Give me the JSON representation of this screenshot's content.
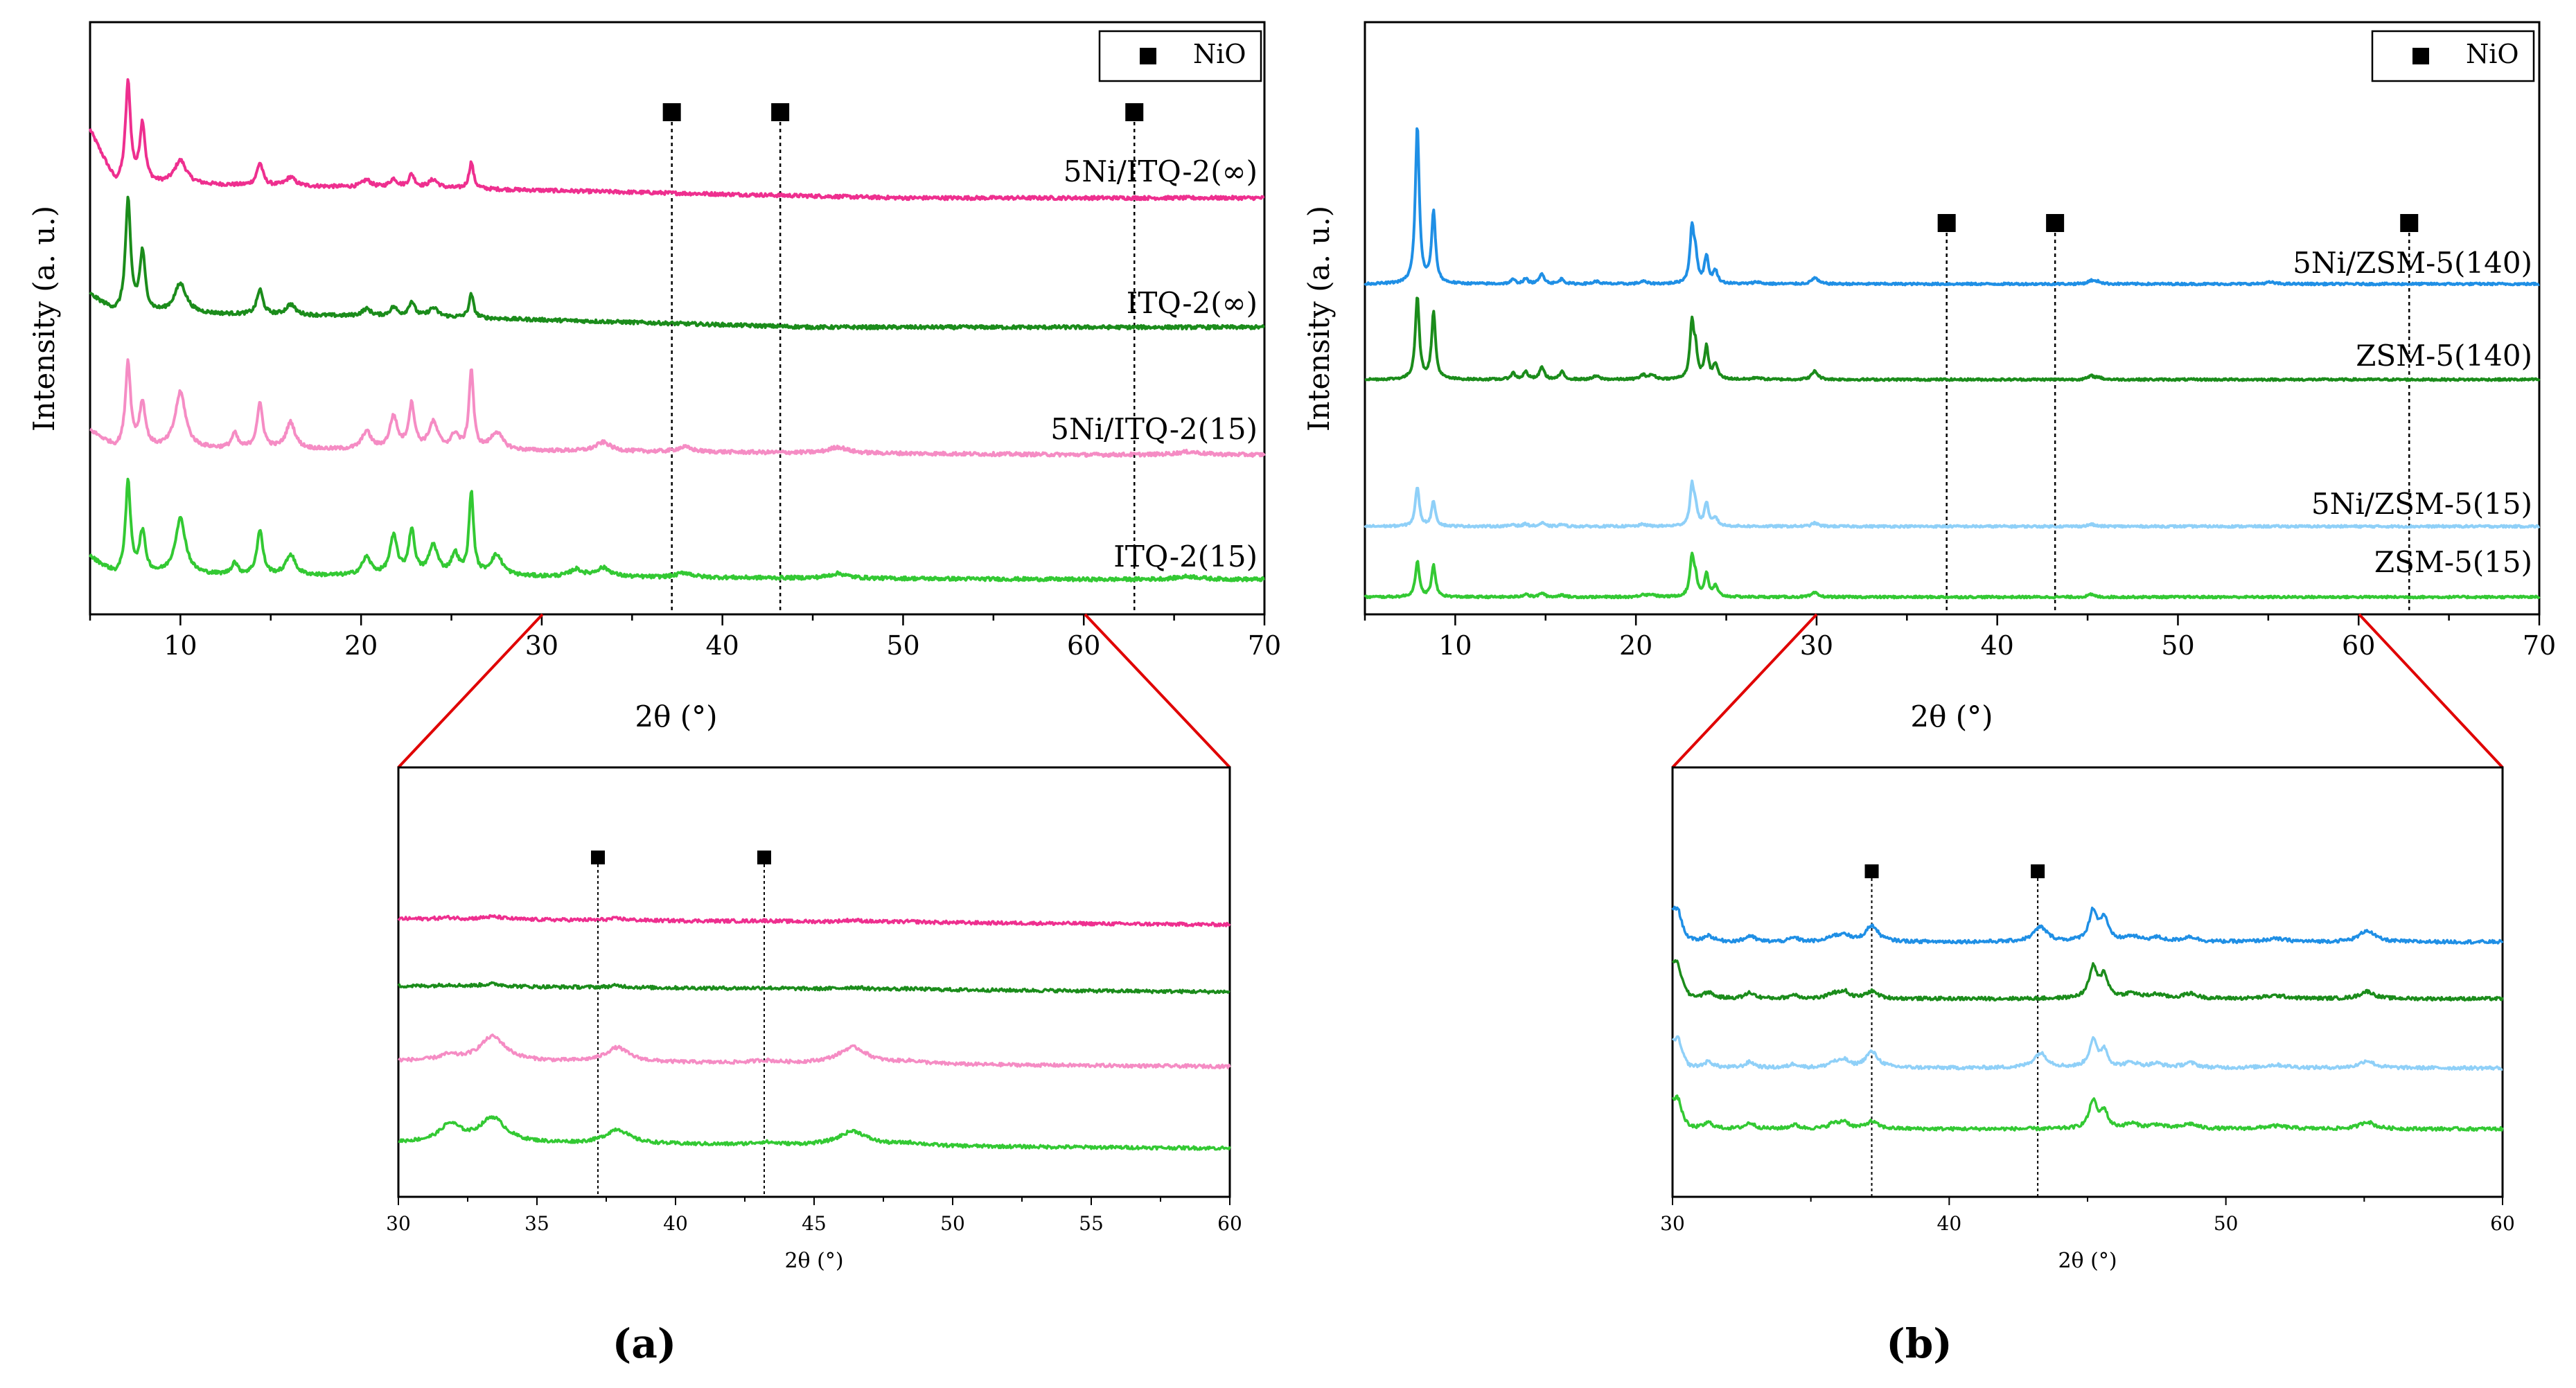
{
  "figure": {
    "panels": [
      {
        "id": "a",
        "label": "(a)"
      },
      {
        "id": "b",
        "label": "(b)"
      }
    ]
  },
  "colors": {
    "pink_dark": "#ee2f8f",
    "green_dark": "#1b8c1b",
    "pink_light": "#f58cc4",
    "green_light": "#33c933",
    "blue_dark": "#1f8fe5",
    "blue_light": "#8fd0f8",
    "zoom_line": "#e00000",
    "axis": "#000000"
  },
  "chart_data": [
    {
      "panel": "a",
      "type": "line",
      "xlabel": "2θ (°)",
      "ylabel": "Intensity (a. u.)",
      "xlim": [
        5,
        70
      ],
      "xticks": [
        10,
        20,
        30,
        40,
        50,
        60,
        70
      ],
      "legend": {
        "symbol": "square",
        "label": "NiO",
        "position": "top-right"
      },
      "markers": {
        "symbol": "square",
        "x": [
          37.2,
          43.2,
          62.8
        ]
      },
      "series": [
        {
          "name": "5Ni/ITQ-2(∞)",
          "color_key": "pink_dark",
          "offset": 3,
          "scale": 1.0,
          "peaks": [
            [
              7.1,
              1.7,
              0.17
            ],
            [
              7.9,
              1.0,
              0.18
            ],
            [
              10.0,
              0.4,
              0.4
            ],
            [
              14.4,
              0.38,
              0.2
            ],
            [
              16.1,
              0.15,
              0.3
            ],
            [
              20.3,
              0.12,
              0.3
            ],
            [
              21.8,
              0.14,
              0.25
            ],
            [
              22.8,
              0.22,
              0.2
            ],
            [
              24.0,
              0.14,
              0.3
            ],
            [
              26.1,
              0.45,
              0.15
            ]
          ],
          "trail": [
            25,
            0.3,
            50,
            0.05
          ]
        },
        {
          "name": "ITQ-2(∞)",
          "color_key": "green_dark",
          "offset": 2,
          "scale": 1.0,
          "peaks": [
            [
              7.1,
              1.9,
              0.17
            ],
            [
              7.9,
              1.0,
              0.18
            ],
            [
              10.0,
              0.5,
              0.4
            ],
            [
              14.4,
              0.42,
              0.2
            ],
            [
              16.1,
              0.18,
              0.3
            ],
            [
              20.3,
              0.12,
              0.3
            ],
            [
              21.8,
              0.15,
              0.25
            ],
            [
              22.8,
              0.25,
              0.2
            ],
            [
              24.0,
              0.15,
              0.3
            ],
            [
              26.1,
              0.4,
              0.15
            ]
          ],
          "trail": [
            25,
            0.28,
            45,
            0.03
          ]
        },
        {
          "name": "5Ni/ITQ-2(15)",
          "color_key": "pink_light",
          "offset": 1,
          "scale": 1.0,
          "peaks": [
            [
              7.1,
              1.45,
              0.17
            ],
            [
              7.9,
              0.75,
              0.2
            ],
            [
              10.0,
              0.95,
              0.35
            ],
            [
              13.0,
              0.25,
              0.2
            ],
            [
              14.4,
              0.75,
              0.2
            ],
            [
              16.1,
              0.45,
              0.3
            ],
            [
              20.3,
              0.3,
              0.3
            ],
            [
              21.8,
              0.55,
              0.25
            ],
            [
              22.8,
              0.75,
              0.2
            ],
            [
              24.0,
              0.45,
              0.3
            ],
            [
              25.2,
              0.25,
              0.25
            ],
            [
              26.1,
              1.35,
              0.15
            ],
            [
              27.5,
              0.3,
              0.4
            ],
            [
              33.4,
              0.15,
              0.5
            ],
            [
              37.9,
              0.08,
              0.5
            ],
            [
              46.4,
              0.1,
              0.6
            ],
            [
              65.8,
              0.05,
              0.8
            ]
          ],
          "trail": [
            30,
            0.15,
            60,
            0.04
          ]
        },
        {
          "name": "ITQ-2(15)",
          "color_key": "green_light",
          "offset": 0,
          "scale": 1.0,
          "peaks": [
            [
              7.1,
              1.55,
              0.17
            ],
            [
              7.9,
              0.7,
              0.2
            ],
            [
              10.0,
              0.95,
              0.35
            ],
            [
              13.0,
              0.2,
              0.2
            ],
            [
              14.4,
              0.75,
              0.2
            ],
            [
              16.1,
              0.35,
              0.3
            ],
            [
              20.3,
              0.3,
              0.3
            ],
            [
              21.8,
              0.65,
              0.25
            ],
            [
              22.8,
              0.75,
              0.2
            ],
            [
              24.0,
              0.5,
              0.3
            ],
            [
              25.2,
              0.35,
              0.25
            ],
            [
              26.1,
              1.4,
              0.15
            ],
            [
              27.5,
              0.35,
              0.4
            ],
            [
              31.9,
              0.12,
              0.4
            ],
            [
              33.4,
              0.15,
              0.5
            ],
            [
              37.9,
              0.08,
              0.5
            ],
            [
              46.4,
              0.08,
              0.6
            ],
            [
              65.8,
              0.05,
              0.8
            ]
          ],
          "trail": [
            30,
            0.12,
            60,
            0.04
          ]
        }
      ],
      "inset": {
        "xlabel": "2θ (°)",
        "xlim": [
          30,
          60
        ],
        "xticks": [
          30,
          35,
          40,
          45,
          50,
          55,
          60
        ],
        "markers": {
          "symbol": "square",
          "x": [
            37.2,
            43.2
          ]
        }
      }
    },
    {
      "panel": "b",
      "type": "line",
      "xlabel": "2θ (°)",
      "ylabel": "Intensity (a. u.)",
      "xlim": [
        5,
        70
      ],
      "xticks": [
        10,
        20,
        30,
        40,
        50,
        60,
        70
      ],
      "legend": {
        "symbol": "square",
        "label": "NiO",
        "position": "top-right"
      },
      "markers": {
        "symbol": "square",
        "x": [
          37.2,
          43.2,
          62.8
        ]
      },
      "series": [
        {
          "name": "5Ni/ZSM-5(140)",
          "color_key": "blue_dark",
          "offset": 3,
          "scale": 1.0,
          "peaks": [
            [
              7.9,
              3.8,
              0.13
            ],
            [
              8.8,
              1.7,
              0.13
            ],
            [
              13.2,
              0.1,
              0.15
            ],
            [
              13.9,
              0.12,
              0.15
            ],
            [
              14.8,
              0.25,
              0.15
            ],
            [
              15.9,
              0.12,
              0.15
            ],
            [
              17.8,
              0.06,
              0.2
            ],
            [
              20.4,
              0.06,
              0.2
            ],
            [
              23.1,
              1.3,
              0.13
            ],
            [
              23.3,
              0.6,
              0.12
            ],
            [
              23.9,
              0.65,
              0.13
            ],
            [
              24.4,
              0.3,
              0.15
            ],
            [
              26.7,
              0.05,
              0.2
            ],
            [
              29.9,
              0.15,
              0.2
            ],
            [
              45.2,
              0.08,
              0.2
            ],
            [
              45.6,
              0.05,
              0.2
            ],
            [
              55.1,
              0.04,
              0.3
            ]
          ],
          "trail": [
            30,
            0.0,
            70,
            0.0
          ]
        },
        {
          "name": "ZSM-5(140)",
          "color_key": "green_dark",
          "offset": 2,
          "scale": 1.0,
          "peaks": [
            [
              7.9,
              2.0,
              0.13
            ],
            [
              8.8,
              1.6,
              0.13
            ],
            [
              13.2,
              0.15,
              0.15
            ],
            [
              13.9,
              0.18,
              0.15
            ],
            [
              14.8,
              0.3,
              0.15
            ],
            [
              15.9,
              0.18,
              0.15
            ],
            [
              17.8,
              0.08,
              0.2
            ],
            [
              20.4,
              0.1,
              0.2
            ],
            [
              20.9,
              0.1,
              0.2
            ],
            [
              23.1,
              1.3,
              0.13
            ],
            [
              23.3,
              0.6,
              0.12
            ],
            [
              23.9,
              0.75,
              0.13
            ],
            [
              24.4,
              0.35,
              0.15
            ],
            [
              26.7,
              0.05,
              0.2
            ],
            [
              29.9,
              0.2,
              0.2
            ],
            [
              45.2,
              0.08,
              0.2
            ],
            [
              45.6,
              0.05,
              0.2
            ]
          ],
          "trail": [
            30,
            0.0,
            70,
            0.0
          ]
        },
        {
          "name": "5Ni/ZSM-5(15)",
          "color_key": "blue_light",
          "offset": 1,
          "scale": 1.0,
          "peaks": [
            [
              7.9,
              0.95,
              0.13
            ],
            [
              8.8,
              0.6,
              0.13
            ],
            [
              13.2,
              0.05,
              0.15
            ],
            [
              13.9,
              0.06,
              0.15
            ],
            [
              14.8,
              0.08,
              0.15
            ],
            [
              15.9,
              0.05,
              0.15
            ],
            [
              20.4,
              0.05,
              0.2
            ],
            [
              23.1,
              0.95,
              0.13
            ],
            [
              23.3,
              0.4,
              0.12
            ],
            [
              23.9,
              0.55,
              0.13
            ],
            [
              24.4,
              0.2,
              0.15
            ],
            [
              29.9,
              0.08,
              0.2
            ],
            [
              45.2,
              0.05,
              0.2
            ]
          ],
          "trail": [
            30,
            0.0,
            70,
            0.0
          ]
        },
        {
          "name": "ZSM-5(15)",
          "color_key": "green_light",
          "offset": 0,
          "scale": 1.0,
          "peaks": [
            [
              7.9,
              0.85,
              0.13
            ],
            [
              8.8,
              0.75,
              0.13
            ],
            [
              13.9,
              0.08,
              0.15
            ],
            [
              14.8,
              0.1,
              0.15
            ],
            [
              15.9,
              0.06,
              0.15
            ],
            [
              20.4,
              0.06,
              0.2
            ],
            [
              20.9,
              0.06,
              0.2
            ],
            [
              23.1,
              0.95,
              0.13
            ],
            [
              23.3,
              0.4,
              0.12
            ],
            [
              23.9,
              0.55,
              0.13
            ],
            [
              24.4,
              0.25,
              0.15
            ],
            [
              29.9,
              0.1,
              0.2
            ],
            [
              45.2,
              0.06,
              0.2
            ]
          ],
          "trail": [
            30,
            0.0,
            70,
            0.0
          ]
        }
      ],
      "inset": {
        "xlabel": "2θ (°)",
        "xlim": [
          30,
          60
        ],
        "xticks": [
          30,
          40,
          50,
          60
        ],
        "markers": {
          "symbol": "square",
          "x": [
            37.2,
            43.2
          ]
        }
      }
    }
  ]
}
